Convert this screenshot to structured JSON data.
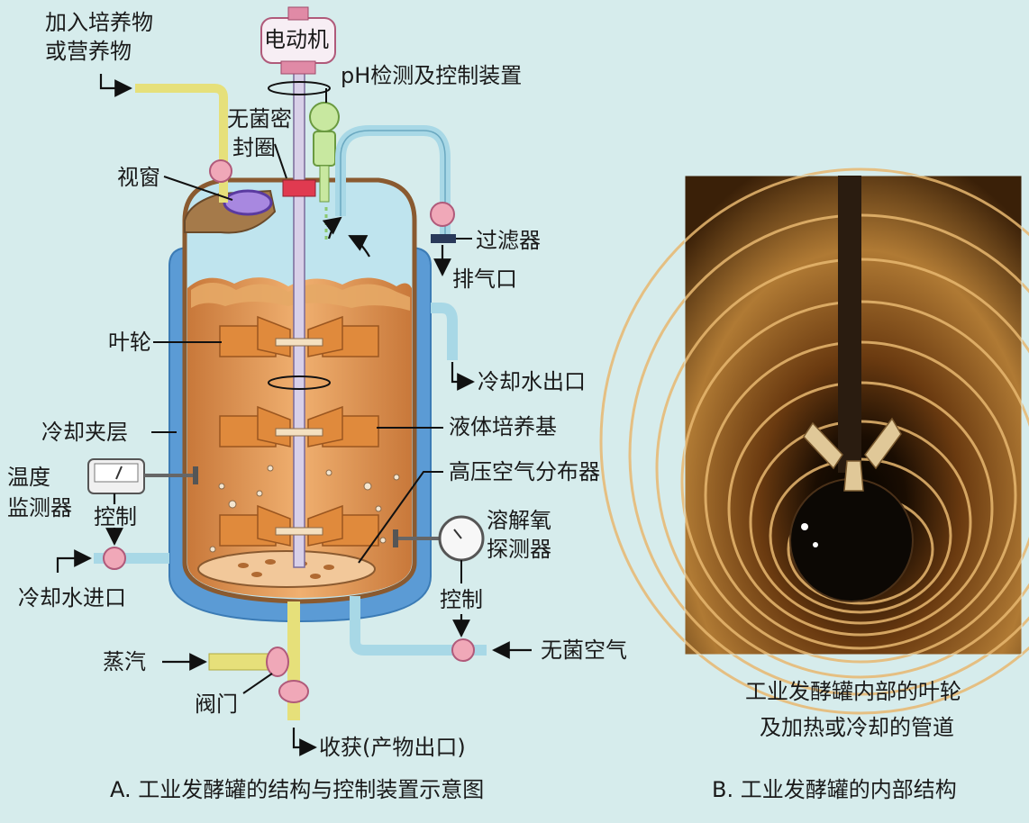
{
  "labels": {
    "feed_line1": "加入培养物",
    "feed_line2": "或营养物",
    "motor": "电动机",
    "ph": "pH检测及控制装置",
    "seal_line1": "无菌密",
    "seal_line2": "封圈",
    "window": "视窗",
    "filter": "过滤器",
    "exhaust": "排气口",
    "impeller": "叶轮",
    "cooling_out": "冷却水出口",
    "jacket": "冷却夹层",
    "medium": "液体培养基",
    "sparger": "高压空气分布器",
    "temp_line1": "温度",
    "temp_line2": "监测器",
    "control_left": "控制",
    "do_line1": "溶解氧",
    "do_line2": "探测器",
    "control_right": "控制",
    "cooling_in": "冷却水进口",
    "sterile_air": "无菌空气",
    "steam": "蒸汽",
    "valve": "阀门",
    "harvest": "收获(产物出口)"
  },
  "captions": {
    "right_line1": "工业发酵罐内部的叶轮",
    "right_line2": "及加热或冷却的管道",
    "a": "A. 工业发酵罐的结构与控制装置示意图",
    "b": "B. 工业发酵罐的内部结构"
  },
  "colors": {
    "background": "#d6ecec",
    "jacket": "#5b9bd5",
    "medium": "#d9904a",
    "impeller": "#e08a3c",
    "pipe_yellow": "#e6e07a",
    "pipe_blue": "#a8d8e6"
  }
}
